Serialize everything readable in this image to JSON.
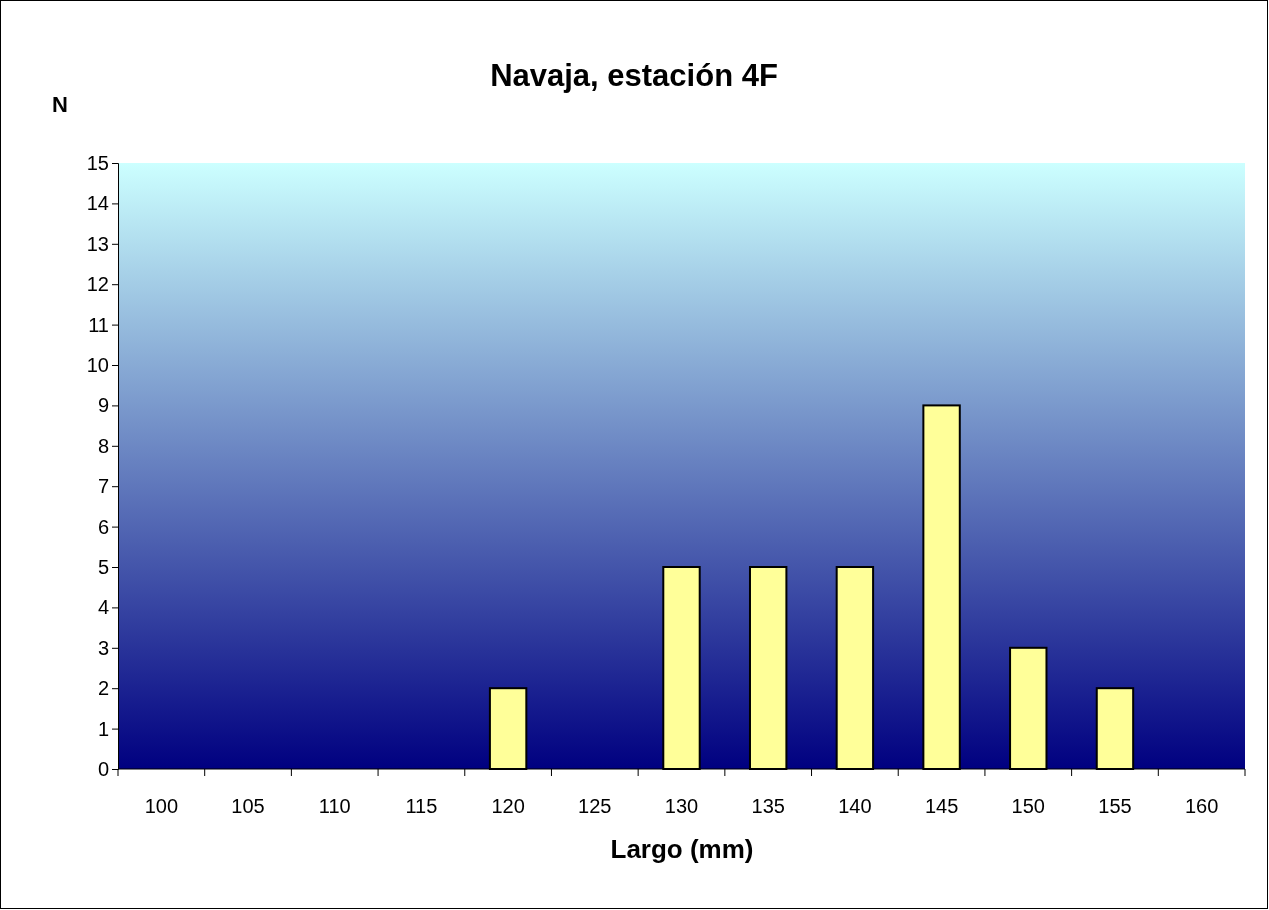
{
  "chart_data": {
    "type": "bar",
    "title": "Navaja, estación 4F",
    "xlabel": "Largo (mm)",
    "ylabel": "N",
    "categories": [
      "100",
      "105",
      "110",
      "115",
      "120",
      "125",
      "130",
      "135",
      "140",
      "145",
      "150",
      "155",
      "160"
    ],
    "values": [
      0,
      0,
      0,
      0,
      2,
      0,
      5,
      5,
      5,
      9,
      3,
      2,
      0
    ],
    "color": "#ffff99",
    "ylim": [
      0,
      15
    ],
    "yticks": [
      0,
      1,
      2,
      3,
      4,
      5,
      6,
      7,
      8,
      9,
      10,
      11,
      12,
      13,
      14,
      15
    ],
    "grid": false
  }
}
